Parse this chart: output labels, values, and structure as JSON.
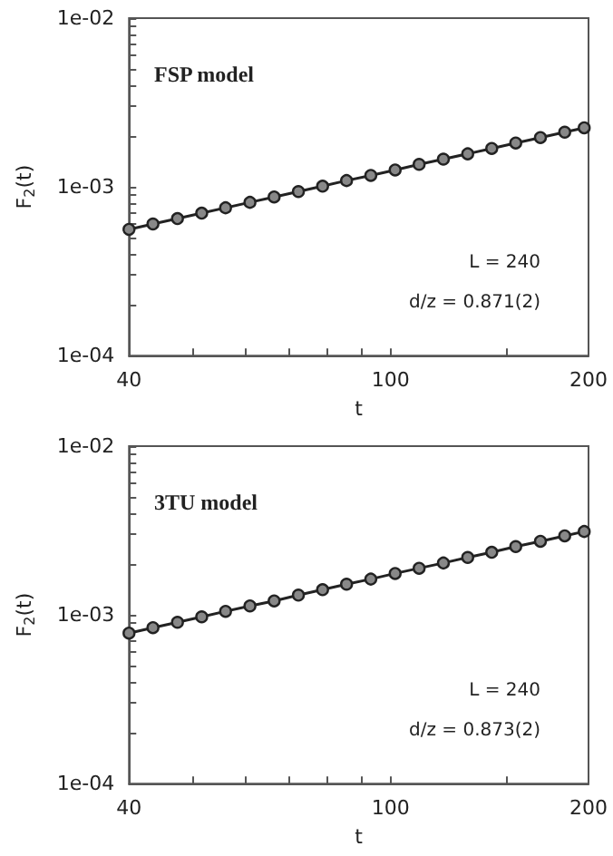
{
  "chart_data": [
    {
      "type": "line",
      "title": "FSP model",
      "xlabel": "t",
      "ylabel": "F$_{2}$(t)",
      "log": "xy",
      "marker": "circle",
      "line_style": "solid",
      "grid": false,
      "x": [
        40,
        43.5,
        47.4,
        51.6,
        56.1,
        61.1,
        66.5,
        72.4,
        78.8,
        85.7,
        93.3,
        101.6,
        110.5,
        120.3,
        131,
        142.5,
        155,
        169,
        184,
        197
      ],
      "series": [
        {
          "color": "#222222",
          "values": [
            0.00056,
            0.000603,
            0.000649,
            0.000699,
            0.000752,
            0.00081,
            0.000872,
            0.000938,
            0.00101,
            0.00109,
            0.00117,
            0.00126,
            0.00136,
            0.00146,
            0.00157,
            0.00169,
            0.00182,
            0.00196,
            0.00211,
            0.00224
          ]
        }
      ],
      "xlim": [
        40,
        200
      ],
      "xticks": [
        40,
        {
          "value": 50,
          "label": null
        },
        {
          "value": 60,
          "label": null
        },
        {
          "value": 70,
          "label": null
        },
        {
          "value": 80,
          "label": null
        },
        {
          "value": 90,
          "label": null
        },
        100,
        {
          "value": 150,
          "label": null
        },
        200
      ],
      "ylim": [
        0.0001,
        0.01
      ],
      "yticks": [
        {
          "value": 0.0001,
          "label": "1e-04"
        },
        {
          "value": 0.0002,
          "label": null
        },
        {
          "value": 0.0003,
          "label": null
        },
        {
          "value": 0.0004,
          "label": null
        },
        {
          "value": 0.0005,
          "label": null
        },
        {
          "value": 0.0006,
          "label": null
        },
        {
          "value": 0.0007,
          "label": null
        },
        {
          "value": 0.0008,
          "label": null
        },
        {
          "value": 0.0009,
          "label": null
        },
        {
          "value": 0.001,
          "label": "1e-03"
        },
        {
          "value": 0.002,
          "label": null
        },
        {
          "value": 0.003,
          "label": null
        },
        {
          "value": 0.004,
          "label": null
        },
        {
          "value": 0.005,
          "label": null
        },
        {
          "value": 0.006,
          "label": null
        },
        {
          "value": 0.007,
          "label": null
        },
        {
          "value": 0.008,
          "label": null
        },
        {
          "value": 0.009,
          "label": null
        },
        {
          "value": 0.01,
          "label": "1e-02"
        }
      ],
      "annotations": [
        "L = 240",
        "d/z = 0.871(2)"
      ]
    },
    {
      "type": "line",
      "title": "3TU model",
      "xlabel": "t",
      "ylabel": "F$_{2}$(t)",
      "log": "xy",
      "marker": "circle",
      "line_style": "solid",
      "grid": false,
      "x": [
        40,
        43.5,
        47.4,
        51.6,
        56.1,
        61.1,
        66.5,
        72.4,
        78.8,
        85.7,
        93.3,
        101.6,
        110.5,
        120.3,
        131,
        142.5,
        155,
        169,
        184,
        197
      ],
      "series": [
        {
          "color": "#222222",
          "values": [
            0.00078,
            0.00084,
            0.000904,
            0.000974,
            0.00105,
            0.00113,
            0.00121,
            0.00131,
            0.00141,
            0.00152,
            0.00163,
            0.00176,
            0.00189,
            0.00203,
            0.00219,
            0.00235,
            0.00254,
            0.00273,
            0.00294,
            0.00312
          ]
        }
      ],
      "xlim": [
        40,
        200
      ],
      "xticks": [
        40,
        {
          "value": 50,
          "label": null
        },
        {
          "value": 60,
          "label": null
        },
        {
          "value": 70,
          "label": null
        },
        {
          "value": 80,
          "label": null
        },
        {
          "value": 90,
          "label": null
        },
        100,
        {
          "value": 150,
          "label": null
        },
        200
      ],
      "ylim": [
        0.0001,
        0.01
      ],
      "yticks": [
        {
          "value": 0.0001,
          "label": "1e-04"
        },
        {
          "value": 0.0002,
          "label": null
        },
        {
          "value": 0.0003,
          "label": null
        },
        {
          "value": 0.0004,
          "label": null
        },
        {
          "value": 0.0005,
          "label": null
        },
        {
          "value": 0.0006,
          "label": null
        },
        {
          "value": 0.0007,
          "label": null
        },
        {
          "value": 0.0008,
          "label": null
        },
        {
          "value": 0.0009,
          "label": null
        },
        {
          "value": 0.001,
          "label": "1e-03"
        },
        {
          "value": 0.002,
          "label": null
        },
        {
          "value": 0.003,
          "label": null
        },
        {
          "value": 0.004,
          "label": null
        },
        {
          "value": 0.005,
          "label": null
        },
        {
          "value": 0.006,
          "label": null
        },
        {
          "value": 0.007,
          "label": null
        },
        {
          "value": 0.008,
          "label": null
        },
        {
          "value": 0.009,
          "label": null
        },
        {
          "value": 0.01,
          "label": "1e-02"
        }
      ],
      "annotations": [
        "L = 240",
        "d/z = 0.873(2)"
      ]
    }
  ]
}
